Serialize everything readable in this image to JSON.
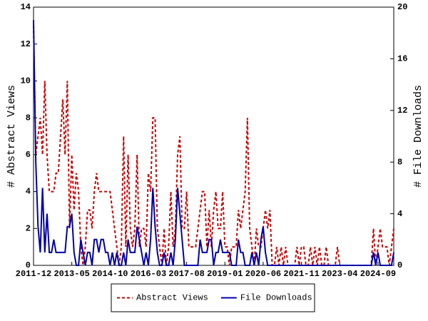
{
  "chart_data": {
    "type": "line",
    "y_label": "# Abstract Views",
    "y2_label": "# File Downloads",
    "categories": [
      "2011-12",
      null,
      null,
      null,
      null,
      null,
      null,
      null,
      null,
      null,
      null,
      null,
      null,
      null,
      null,
      null,
      null,
      "2013-05",
      null,
      null,
      null,
      null,
      null,
      null,
      null,
      null,
      null,
      null,
      null,
      null,
      null,
      null,
      null,
      null,
      "2014-10",
      null,
      null,
      null,
      null,
      null,
      null,
      null,
      null,
      null,
      null,
      null,
      null,
      null,
      null,
      null,
      null,
      "2016-03",
      null,
      null,
      null,
      null,
      null,
      null,
      null,
      null,
      null,
      null,
      null,
      null,
      null,
      null,
      null,
      null,
      "2017-08",
      null,
      null,
      null,
      null,
      null,
      null,
      null,
      null,
      null,
      null,
      null,
      null,
      null,
      null,
      null,
      null,
      "2019-01",
      null,
      null,
      null,
      null,
      null,
      null,
      null,
      null,
      null,
      null,
      null,
      null,
      null,
      null,
      null,
      null,
      "2020-06",
      null,
      null,
      null,
      null,
      null,
      null,
      null,
      null,
      null,
      null,
      null,
      null,
      null,
      null,
      null,
      null,
      "2021-11",
      null,
      null,
      null,
      null,
      null,
      null,
      null,
      null,
      null,
      null,
      null,
      null,
      null,
      null,
      null,
      null,
      "2023-04",
      null,
      null,
      null,
      null,
      null,
      null,
      null,
      null,
      null,
      null,
      null,
      null,
      null,
      null,
      null,
      null,
      "2024-09",
      null,
      null,
      null,
      null,
      null,
      null,
      null
    ],
    "series": [
      {
        "name": "Abstract Views",
        "color": "#cc0000",
        "dashed": true,
        "values": [
          13,
          6,
          7,
          8,
          6,
          10,
          6,
          4,
          4,
          4,
          5,
          5,
          7,
          9,
          6,
          10,
          2,
          6,
          3,
          5,
          4,
          1,
          0,
          1,
          3,
          3,
          2,
          4,
          5,
          4,
          4,
          4,
          4,
          4,
          4,
          3,
          2,
          1,
          0,
          1,
          7,
          1,
          6,
          2,
          1,
          2,
          6,
          1,
          2,
          2,
          1,
          5,
          4,
          8,
          8,
          2,
          1,
          0,
          2,
          0,
          1,
          4,
          1,
          2,
          6,
          7,
          2,
          2,
          4,
          1,
          1,
          1,
          1,
          2,
          3,
          4,
          4,
          1,
          3,
          1,
          3,
          4,
          2,
          2,
          4,
          1,
          1,
          0,
          1,
          1,
          1,
          3,
          2,
          3,
          4,
          8,
          2,
          1,
          0,
          2,
          1,
          1,
          2,
          3,
          2,
          3,
          0,
          0,
          1,
          0,
          1,
          0,
          1,
          0,
          0,
          0,
          0,
          1,
          0,
          1,
          1,
          0,
          0,
          1,
          0,
          1,
          0,
          1,
          0,
          0,
          1,
          0,
          0,
          0,
          0,
          1,
          0,
          0,
          0,
          0,
          0,
          0,
          0,
          0,
          0,
          0,
          0,
          0,
          0,
          0,
          0,
          2,
          0,
          1,
          2,
          1,
          1,
          1,
          0,
          1,
          2
        ]
      },
      {
        "name": "File Downloads",
        "color": "#0000aa",
        "dashed": false,
        "axis": "y2",
        "values": [
          19,
          8,
          3,
          1,
          6,
          1,
          4,
          1,
          1,
          2,
          1,
          1,
          1,
          1,
          1,
          3,
          3,
          4,
          1,
          0,
          0,
          2,
          1,
          0,
          1,
          1,
          0,
          2,
          2,
          1,
          2,
          2,
          1,
          1,
          0,
          1,
          0,
          1,
          0,
          0,
          1,
          0,
          2,
          1,
          1,
          1,
          3,
          2,
          1,
          0,
          1,
          0,
          2,
          6,
          3,
          1,
          0,
          0,
          1,
          0,
          0,
          1,
          0,
          2,
          6,
          4,
          2,
          0,
          0,
          0,
          0,
          0,
          0,
          0,
          2,
          1,
          1,
          1,
          2,
          2,
          0,
          1,
          1,
          2,
          1,
          1,
          1,
          1,
          0,
          0,
          0,
          2,
          1,
          1,
          0,
          0,
          0,
          1,
          0,
          1,
          0,
          2,
          3,
          1,
          0,
          0,
          0,
          0,
          0,
          0,
          0,
          0,
          0,
          0,
          0,
          0,
          0,
          0,
          0,
          0,
          0,
          0,
          0,
          0,
          0,
          0,
          0,
          0,
          0,
          0,
          0,
          0,
          0,
          0,
          0,
          0,
          0,
          0,
          0,
          0,
          0,
          0,
          0,
          0,
          0,
          0,
          0,
          0,
          0,
          0,
          0,
          1,
          0,
          1,
          0,
          0,
          0,
          0,
          0,
          0,
          1
        ]
      }
    ],
    "ylim": [
      0,
      14
    ],
    "yticks": [
      0,
      2,
      4,
      6,
      8,
      10,
      12,
      14
    ],
    "y2lim": [
      0,
      20
    ],
    "y2ticks": [
      0,
      4,
      8,
      12,
      16,
      20
    ],
    "legend": "bottom"
  }
}
